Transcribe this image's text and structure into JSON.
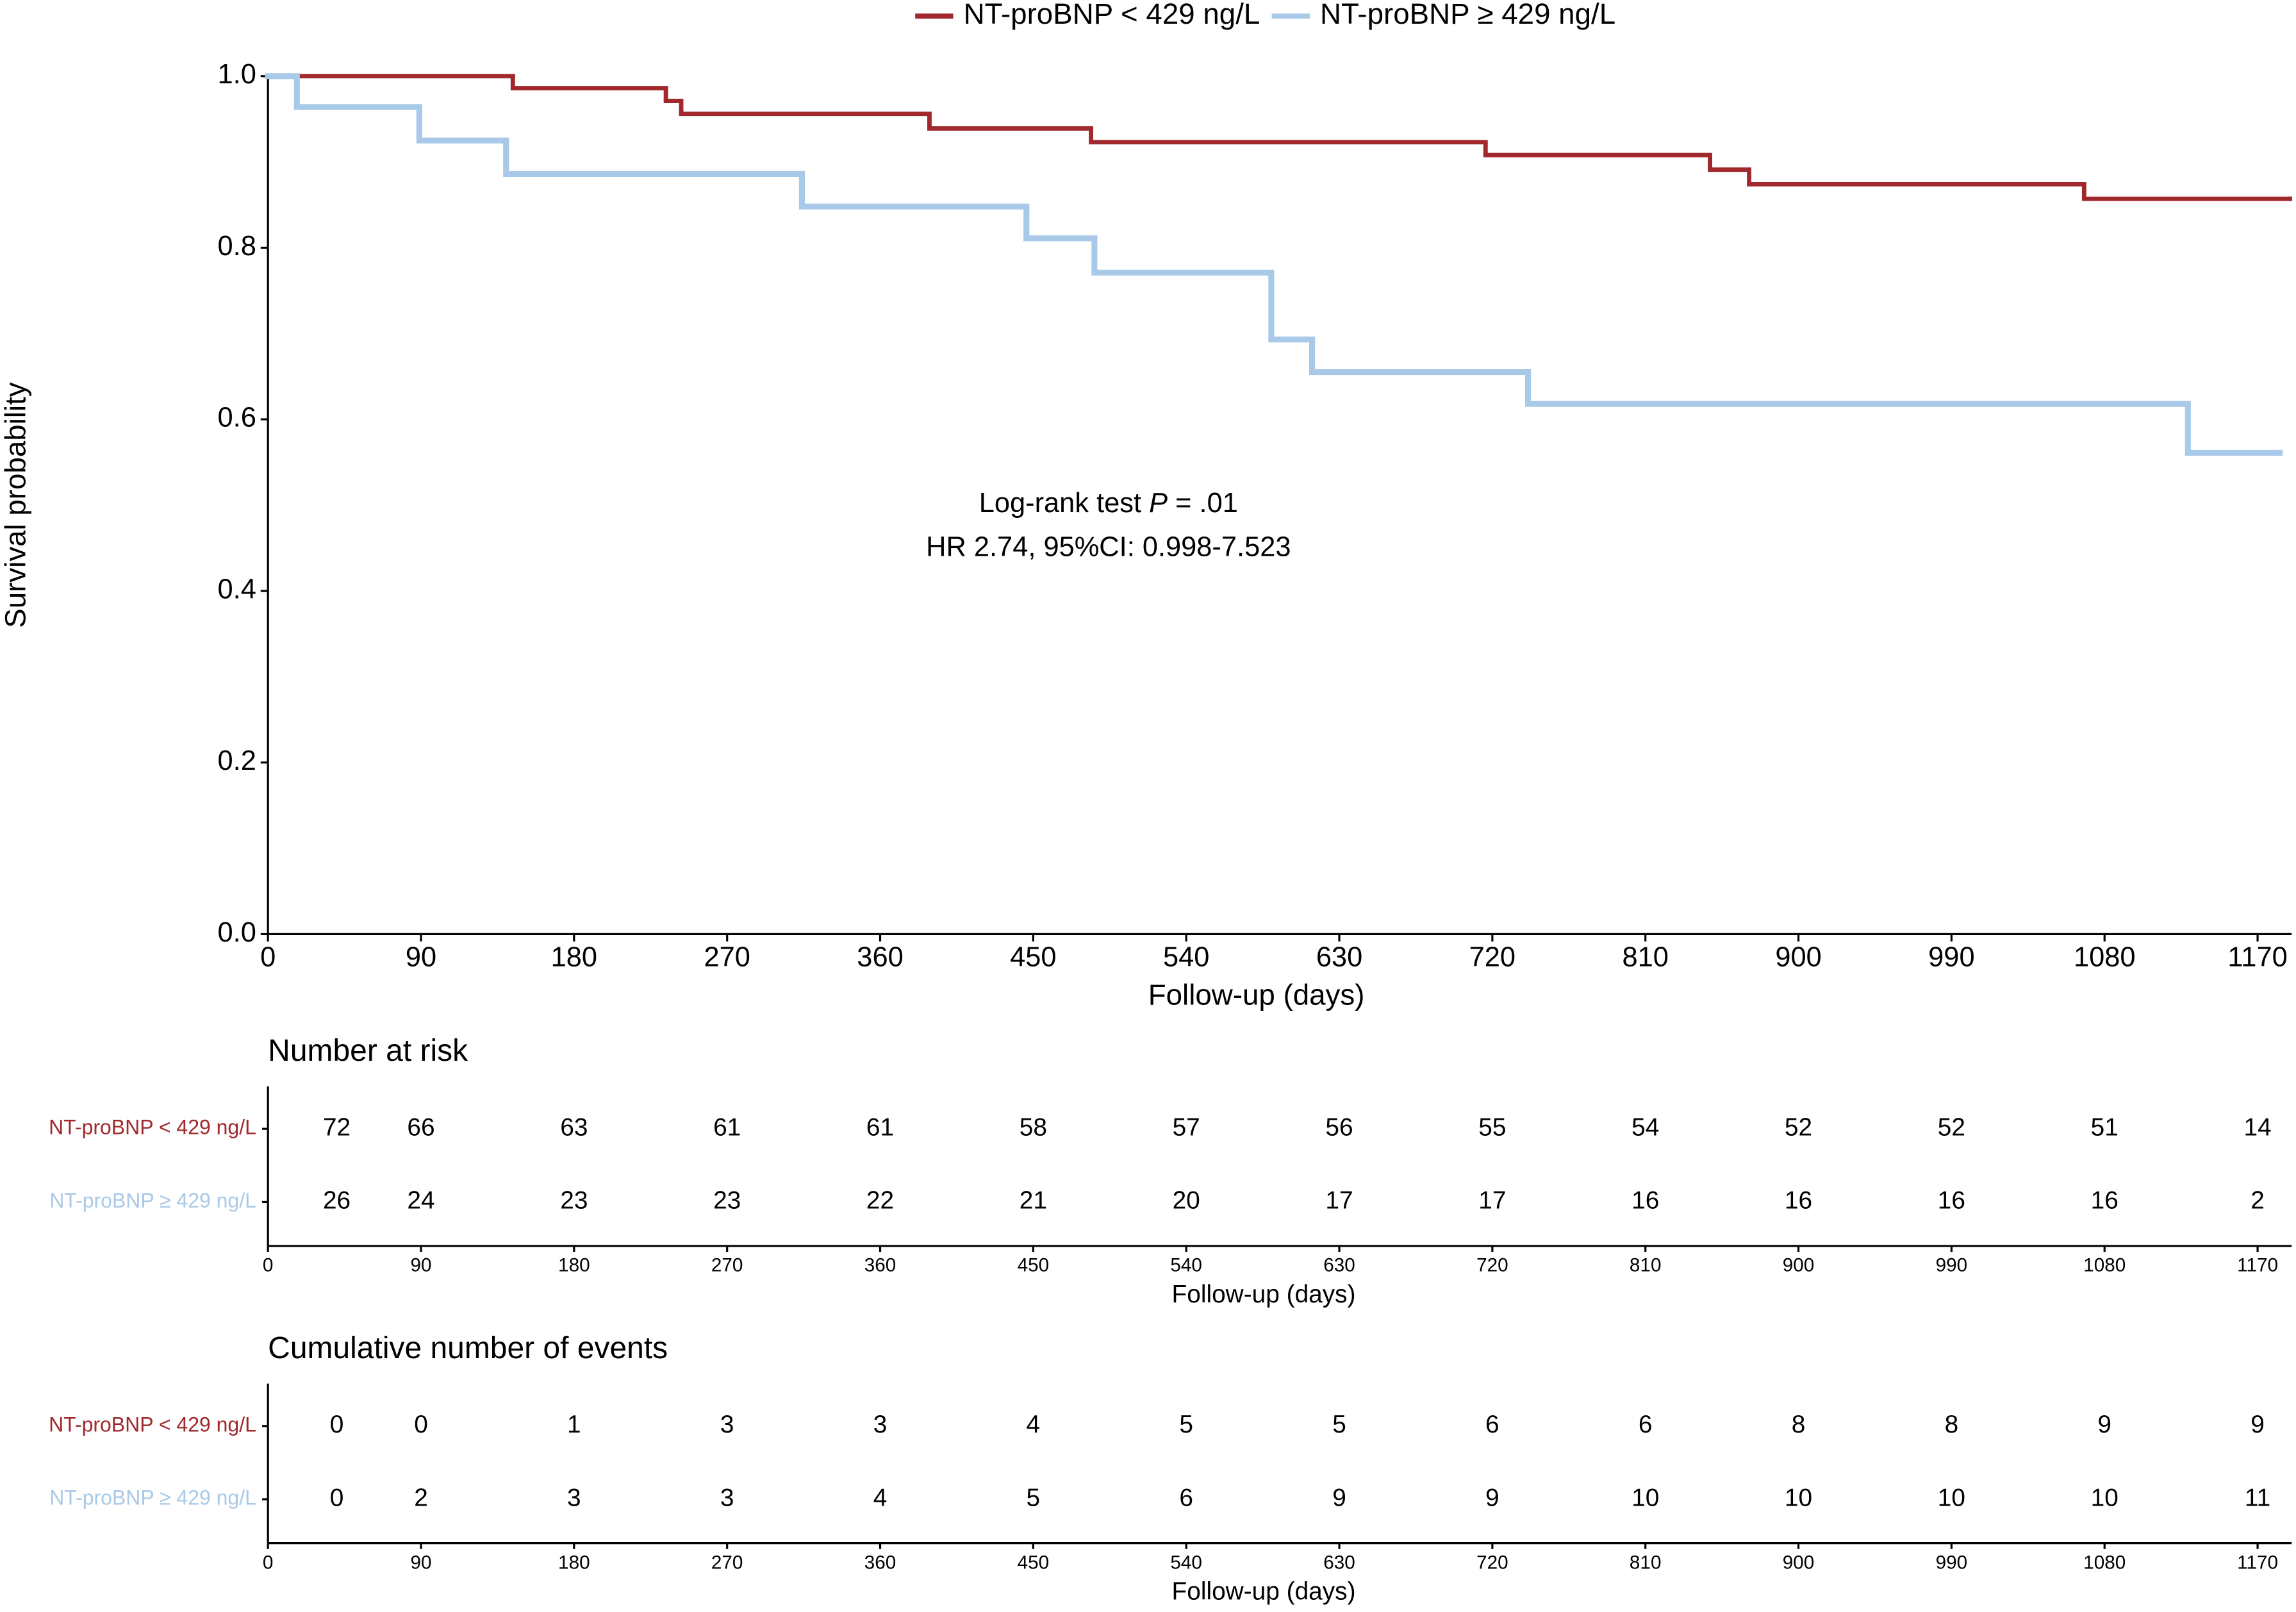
{
  "chart_data": [
    {
      "type": "step",
      "xlabel": "Follow-up (days)",
      "ylabel": "Survival probability",
      "xlim": [
        0,
        1190
      ],
      "ylim": [
        0,
        1
      ],
      "xticks": [
        0,
        90,
        180,
        270,
        360,
        450,
        540,
        630,
        720,
        810,
        900,
        990,
        1080,
        1170
      ],
      "yticks": [
        {
          "value": 0,
          "label": "0.0"
        },
        0.2,
        0.4,
        0.6,
        0.8,
        {
          "value": 1,
          "label": "1.0"
        }
      ],
      "legend": "top",
      "annotations": [
        {
          "parts": [
            "Log-rank test ",
            "P",
            " = .01"
          ]
        },
        {
          "parts": [
            "HR 2.74, 95%CI: 0.998-7.523"
          ]
        }
      ],
      "series": [
        {
          "name": "NT-proBNP < 429 ng/L",
          "color": "#a1282c",
          "x": [
            0,
            144,
            234,
            243,
            389,
            484,
            716,
            848,
            871,
            1068,
            1189
          ],
          "values": [
            1.0,
            0.986,
            0.971,
            0.956,
            0.939,
            0.923,
            0.908,
            0.891,
            0.874,
            0.857,
            0.857
          ]
        },
        {
          "name": "NT-proBNP ≥ 429 ng/L",
          "color": "#a9c9e8",
          "x": [
            0,
            17,
            89,
            140,
            314,
            446,
            486,
            590,
            614,
            741,
            1129,
            1183
          ],
          "values": [
            1.0,
            0.964,
            0.925,
            0.886,
            0.848,
            0.811,
            0.771,
            0.693,
            0.655,
            0.618,
            0.561,
            0.561
          ]
        }
      ]
    },
    {
      "type": "risk_table",
      "title": "Number at risk",
      "xlabel": "Follow-up (days)",
      "xlim": [
        0,
        1190
      ],
      "xticks": [
        0,
        90,
        180,
        270,
        360,
        450,
        540,
        630,
        720,
        810,
        900,
        990,
        1080,
        1170
      ],
      "rows": [
        {
          "label": "NT-proBNP < 429 ng/L",
          "color": "#a1282c",
          "values": [
            72,
            66,
            63,
            61,
            61,
            58,
            57,
            56,
            55,
            54,
            52,
            52,
            51,
            14
          ]
        },
        {
          "label": "NT-proBNP ≥ 429 ng/L",
          "color": "#a9c9e8",
          "values": [
            26,
            24,
            23,
            23,
            22,
            21,
            20,
            17,
            17,
            16,
            16,
            16,
            16,
            2
          ]
        }
      ]
    },
    {
      "type": "risk_table",
      "title": "Cumulative number of events",
      "xlabel": "Follow-up (days)",
      "xlim": [
        0,
        1190
      ],
      "xticks": [
        0,
        90,
        180,
        270,
        360,
        450,
        540,
        630,
        720,
        810,
        900,
        990,
        1080,
        1170
      ],
      "rows": [
        {
          "label": "NT-proBNP < 429 ng/L",
          "color": "#a1282c",
          "values": [
            0,
            0,
            1,
            3,
            3,
            4,
            5,
            5,
            6,
            6,
            8,
            8,
            9,
            9
          ]
        },
        {
          "label": "NT-proBNP ≥ 429 ng/L",
          "color": "#a9c9e8",
          "values": [
            0,
            2,
            3,
            3,
            4,
            5,
            6,
            9,
            9,
            10,
            10,
            10,
            10,
            11
          ]
        }
      ]
    }
  ]
}
